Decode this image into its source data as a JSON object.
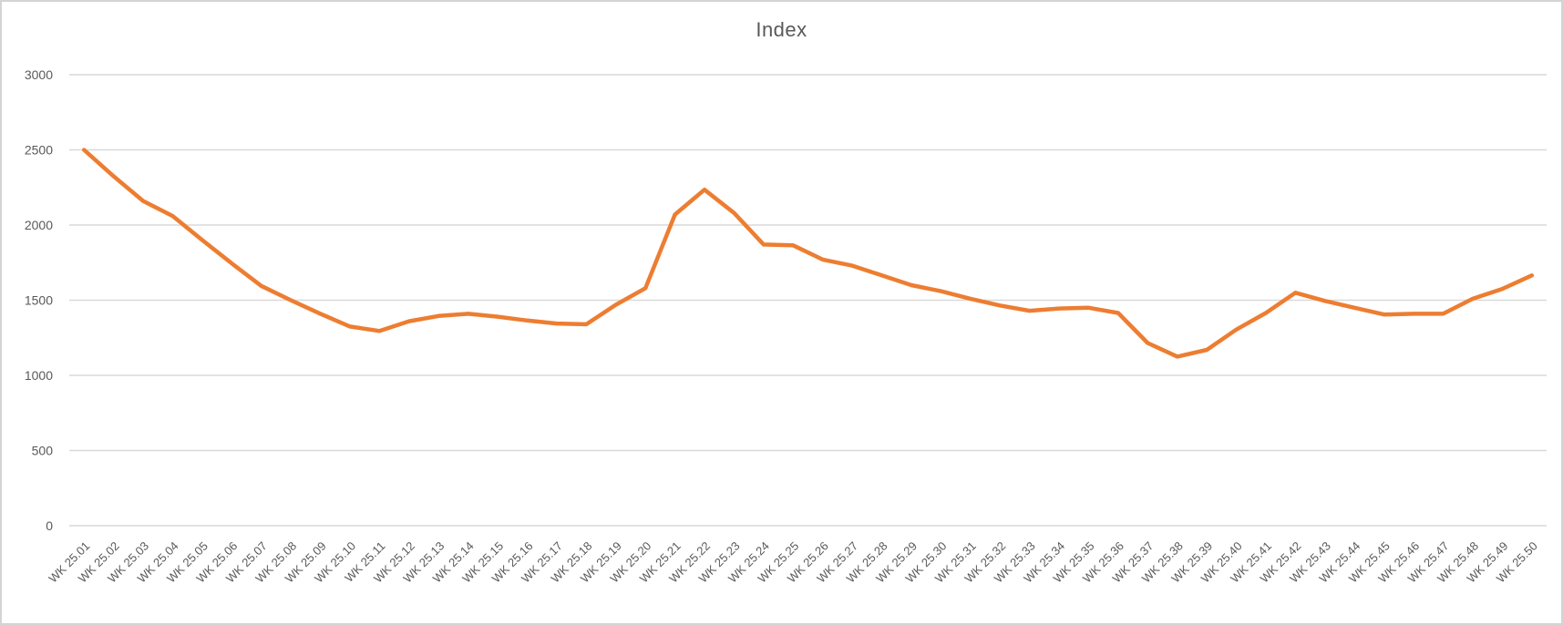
{
  "chart_data": {
    "type": "line",
    "title": "Index",
    "categories": [
      "WK 25.01",
      "WK 25.02",
      "WK 25.03",
      "WK 25.04",
      "WK 25.05",
      "WK 25.06",
      "WK 25.07",
      "WK 25.08",
      "WK 25.09",
      "WK 25.10",
      "WK 25.11",
      "WK 25.12",
      "WK 25.13",
      "WK 25.14",
      "WK 25.15",
      "WK 25.16",
      "WK 25.17",
      "WK 25.18",
      "WK 25.19",
      "WK 25.20",
      "WK 25.21",
      "WK 25.22",
      "WK 25.23",
      "WK 25.24",
      "WK 25.25",
      "WK 25.26",
      "WK 25.27",
      "WK 25.28",
      "WK 25.29",
      "WK 25.30",
      "WK 25.31",
      "WK 25.32",
      "WK 25.33",
      "WK 25.34",
      "WK 25.35",
      "WK 25.36",
      "WK 25.37",
      "WK 25.38",
      "WK 25.39",
      "WK 25.40",
      "WK 25.41",
      "WK 25.42",
      "WK 25.43",
      "WK 25.44",
      "WK 25.45",
      "WK 25.46",
      "WK 25.47",
      "WK 25.48",
      "WK 25.49",
      "WK 25.50"
    ],
    "series": [
      {
        "name": "Index",
        "color": "#ED7D31",
        "values": [
          2500,
          2325,
          2160,
          2060,
          1900,
          1745,
          1595,
          1500,
          1410,
          1325,
          1295,
          1360,
          1395,
          1410,
          1390,
          1365,
          1345,
          1340,
          1470,
          1580,
          2070,
          2235,
          2080,
          1870,
          1865,
          1770,
          1730,
          1665,
          1600,
          1560,
          1510,
          1465,
          1430,
          1445,
          1450,
          1415,
          1215,
          1125,
          1170,
          1305,
          1415,
          1550,
          1495,
          1450,
          1405,
          1410,
          1410,
          1510,
          1575,
          1665
        ]
      }
    ],
    "xlabel": "",
    "ylabel": "",
    "ylim": [
      0,
      3000
    ],
    "yticks": [
      0,
      500,
      1000,
      1500,
      2000,
      2500,
      3000
    ],
    "grid": "horizontal",
    "legend_position": "none",
    "x_label_rotation": -45
  },
  "colors": {
    "line": "#ED7D31",
    "gridline": "#D9D9D9",
    "tick_label": "#595959",
    "title": "#595959",
    "frame_border": "#D4D4D4",
    "background": "#FFFFFF"
  }
}
